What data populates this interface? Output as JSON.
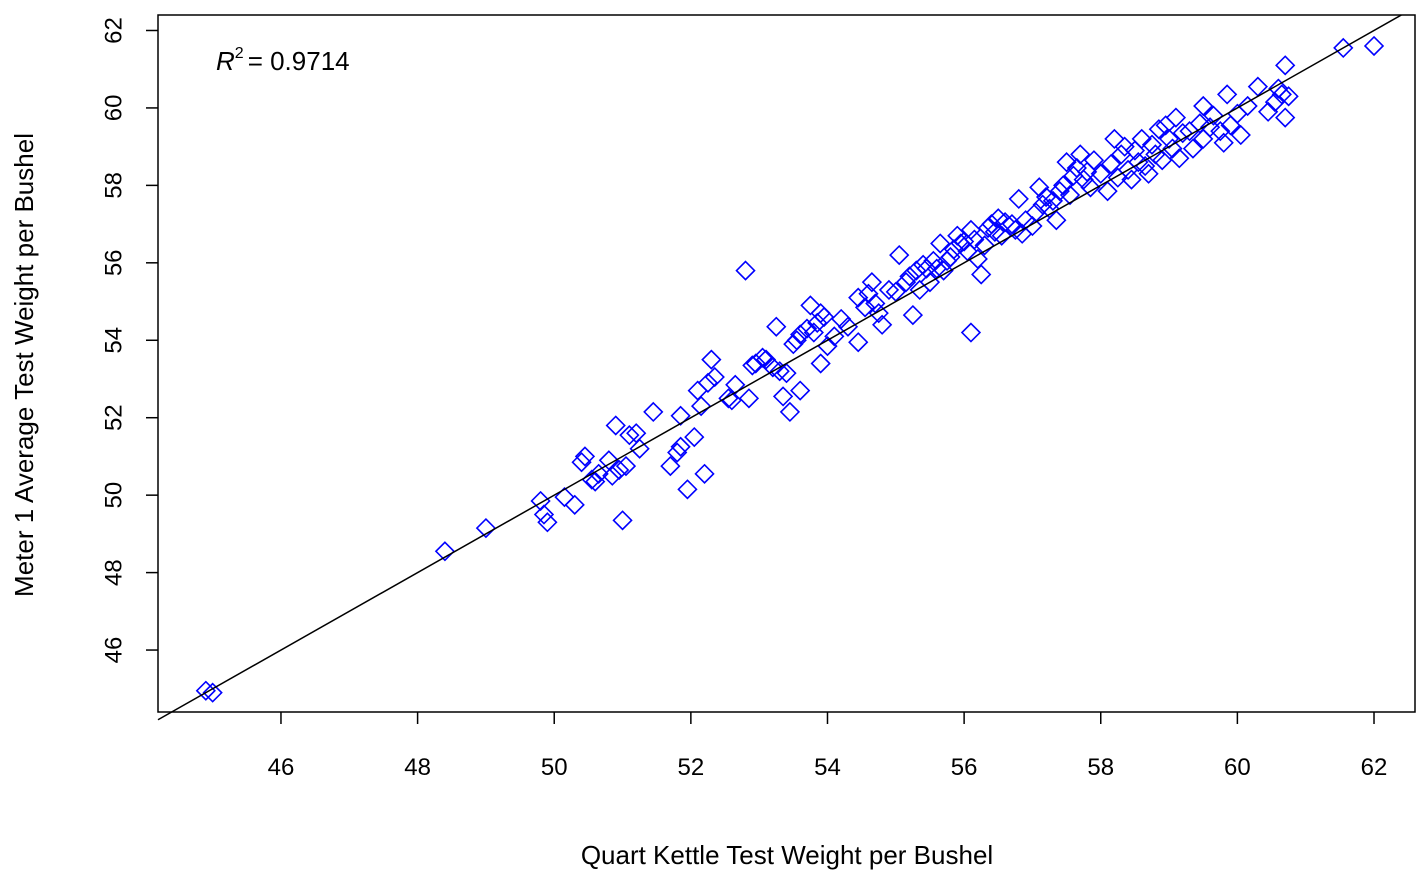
{
  "chart_data": {
    "type": "scatter",
    "xlabel": "Quart Kettle Test Weight per Bushel",
    "ylabel": "Meter 1 Average Test Weight per Bushel",
    "xlim": [
      44.2,
      62.6
    ],
    "ylim": [
      44.4,
      62.4
    ],
    "xticks": [
      46,
      48,
      50,
      52,
      54,
      56,
      58,
      60,
      62
    ],
    "yticks": [
      46,
      48,
      50,
      52,
      54,
      56,
      58,
      60,
      62
    ],
    "grid": false,
    "marker": "open-diamond",
    "marker_color": "#0000ff",
    "fit_line": {
      "slope": 1.0,
      "intercept": 0.0,
      "color": "#000000"
    },
    "annotation": {
      "lhs": "R",
      "exp": "2",
      "rhs": "= 0.9714",
      "placement": "top-left"
    },
    "points": [
      [
        44.9,
        44.95
      ],
      [
        45.0,
        44.9
      ],
      [
        48.4,
        48.55
      ],
      [
        49.0,
        49.15
      ],
      [
        49.8,
        49.85
      ],
      [
        49.85,
        49.5
      ],
      [
        49.9,
        49.3
      ],
      [
        50.15,
        49.95
      ],
      [
        50.3,
        49.75
      ],
      [
        50.4,
        50.85
      ],
      [
        50.45,
        51.0
      ],
      [
        50.55,
        50.4
      ],
      [
        50.6,
        50.35
      ],
      [
        50.65,
        50.55
      ],
      [
        50.8,
        50.9
      ],
      [
        50.85,
        50.5
      ],
      [
        50.9,
        51.8
      ],
      [
        50.95,
        50.65
      ],
      [
        51.0,
        49.35
      ],
      [
        51.05,
        50.75
      ],
      [
        51.1,
        51.55
      ],
      [
        51.2,
        51.6
      ],
      [
        51.25,
        51.2
      ],
      [
        51.45,
        52.15
      ],
      [
        51.7,
        50.75
      ],
      [
        51.8,
        51.1
      ],
      [
        51.85,
        51.25
      ],
      [
        51.85,
        52.05
      ],
      [
        51.95,
        50.15
      ],
      [
        52.05,
        51.5
      ],
      [
        52.1,
        52.7
      ],
      [
        52.15,
        52.3
      ],
      [
        52.2,
        50.55
      ],
      [
        52.25,
        52.9
      ],
      [
        52.3,
        53.5
      ],
      [
        52.35,
        53.05
      ],
      [
        52.55,
        52.5
      ],
      [
        52.6,
        52.45
      ],
      [
        52.65,
        52.85
      ],
      [
        52.8,
        55.8
      ],
      [
        52.85,
        52.5
      ],
      [
        52.9,
        53.35
      ],
      [
        52.95,
        53.4
      ],
      [
        53.05,
        53.55
      ],
      [
        53.1,
        53.5
      ],
      [
        53.2,
        53.3
      ],
      [
        53.25,
        54.35
      ],
      [
        53.3,
        53.2
      ],
      [
        53.35,
        52.55
      ],
      [
        53.4,
        53.15
      ],
      [
        53.45,
        52.15
      ],
      [
        53.5,
        53.9
      ],
      [
        53.55,
        54.0
      ],
      [
        53.6,
        54.15
      ],
      [
        53.6,
        52.7
      ],
      [
        53.7,
        54.3
      ],
      [
        53.75,
        54.9
      ],
      [
        53.8,
        54.2
      ],
      [
        53.85,
        54.45
      ],
      [
        53.9,
        54.7
      ],
      [
        53.9,
        53.4
      ],
      [
        53.95,
        54.6
      ],
      [
        54.0,
        53.85
      ],
      [
        54.1,
        54.1
      ],
      [
        54.2,
        54.55
      ],
      [
        54.3,
        54.35
      ],
      [
        54.45,
        55.1
      ],
      [
        54.45,
        53.95
      ],
      [
        54.55,
        54.85
      ],
      [
        54.6,
        55.2
      ],
      [
        54.65,
        55.5
      ],
      [
        54.7,
        54.95
      ],
      [
        54.75,
        54.7
      ],
      [
        54.8,
        54.4
      ],
      [
        54.9,
        55.3
      ],
      [
        55.0,
        55.25
      ],
      [
        55.05,
        56.2
      ],
      [
        55.15,
        55.5
      ],
      [
        55.2,
        55.65
      ],
      [
        55.25,
        54.65
      ],
      [
        55.3,
        55.8
      ],
      [
        55.35,
        55.3
      ],
      [
        55.4,
        55.95
      ],
      [
        55.45,
        55.85
      ],
      [
        55.5,
        55.5
      ],
      [
        55.55,
        56.05
      ],
      [
        55.6,
        55.85
      ],
      [
        55.65,
        56.5
      ],
      [
        55.7,
        55.8
      ],
      [
        55.75,
        56.05
      ],
      [
        55.8,
        56.15
      ],
      [
        55.85,
        56.35
      ],
      [
        55.9,
        56.7
      ],
      [
        55.95,
        56.5
      ],
      [
        56.0,
        56.55
      ],
      [
        56.05,
        56.3
      ],
      [
        56.1,
        56.85
      ],
      [
        56.1,
        54.2
      ],
      [
        56.15,
        56.6
      ],
      [
        56.2,
        56.1
      ],
      [
        56.25,
        55.7
      ],
      [
        56.3,
        56.45
      ],
      [
        56.35,
        56.9
      ],
      [
        56.4,
        57.0
      ],
      [
        56.45,
        56.8
      ],
      [
        56.5,
        57.15
      ],
      [
        56.55,
        56.7
      ],
      [
        56.6,
        57.05
      ],
      [
        56.7,
        57.0
      ],
      [
        56.75,
        56.85
      ],
      [
        56.8,
        57.65
      ],
      [
        56.85,
        56.75
      ],
      [
        56.9,
        57.1
      ],
      [
        57.0,
        56.95
      ],
      [
        57.05,
        57.3
      ],
      [
        57.1,
        57.95
      ],
      [
        57.15,
        57.5
      ],
      [
        57.2,
        57.7
      ],
      [
        57.25,
        57.4
      ],
      [
        57.3,
        57.6
      ],
      [
        57.35,
        57.1
      ],
      [
        57.4,
        57.85
      ],
      [
        57.45,
        58.0
      ],
      [
        57.5,
        58.6
      ],
      [
        57.55,
        57.75
      ],
      [
        57.6,
        58.25
      ],
      [
        57.65,
        58.45
      ],
      [
        57.7,
        58.8
      ],
      [
        57.75,
        58.15
      ],
      [
        57.8,
        58.35
      ],
      [
        57.85,
        57.95
      ],
      [
        57.9,
        58.65
      ],
      [
        58.0,
        58.3
      ],
      [
        58.1,
        57.85
      ],
      [
        58.15,
        58.55
      ],
      [
        58.2,
        59.2
      ],
      [
        58.25,
        58.2
      ],
      [
        58.3,
        58.8
      ],
      [
        58.35,
        59.0
      ],
      [
        58.4,
        58.4
      ],
      [
        58.45,
        58.15
      ],
      [
        58.5,
        58.9
      ],
      [
        58.55,
        58.6
      ],
      [
        58.6,
        59.2
      ],
      [
        58.65,
        58.5
      ],
      [
        58.7,
        58.3
      ],
      [
        58.75,
        59.05
      ],
      [
        58.8,
        58.8
      ],
      [
        58.85,
        59.45
      ],
      [
        58.9,
        58.65
      ],
      [
        58.95,
        59.55
      ],
      [
        59.0,
        59.2
      ],
      [
        59.05,
        58.95
      ],
      [
        59.1,
        59.75
      ],
      [
        59.15,
        58.7
      ],
      [
        59.2,
        59.35
      ],
      [
        59.3,
        59.4
      ],
      [
        59.35,
        58.95
      ],
      [
        59.45,
        59.6
      ],
      [
        59.5,
        59.2
      ],
      [
        59.5,
        60.05
      ],
      [
        59.6,
        59.5
      ],
      [
        59.65,
        59.8
      ],
      [
        59.75,
        59.4
      ],
      [
        59.8,
        59.1
      ],
      [
        59.85,
        60.35
      ],
      [
        59.9,
        59.55
      ],
      [
        60.0,
        59.85
      ],
      [
        60.05,
        59.3
      ],
      [
        60.15,
        60.05
      ],
      [
        60.3,
        60.55
      ],
      [
        60.45,
        59.9
      ],
      [
        60.55,
        60.15
      ],
      [
        60.6,
        60.5
      ],
      [
        60.65,
        60.35
      ],
      [
        60.7,
        61.1
      ],
      [
        60.7,
        59.75
      ],
      [
        60.75,
        60.3
      ],
      [
        61.55,
        61.55
      ],
      [
        62.0,
        61.6
      ]
    ]
  }
}
